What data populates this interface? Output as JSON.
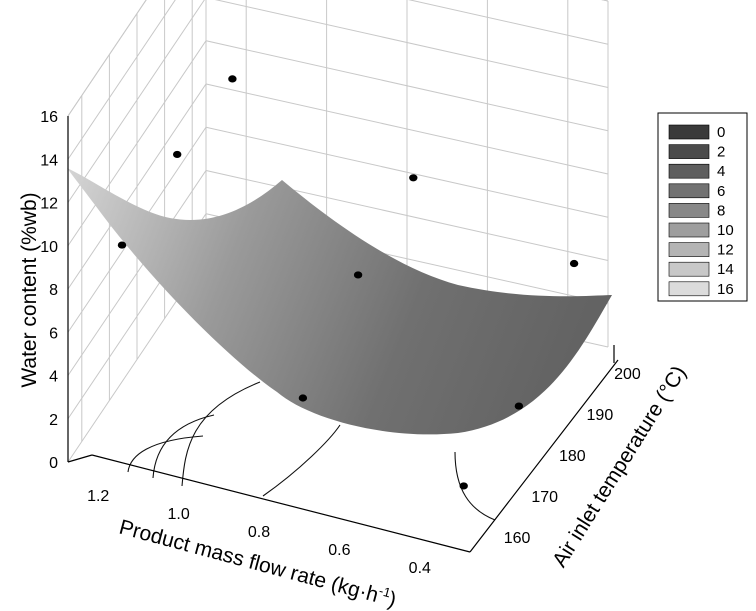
{
  "chart_data": {
    "type": "surface3d",
    "xlabel": "Product mass flow rate (kg·h",
    "xlabel_sup": "-1",
    "xlabel_close": ")",
    "ylabel": "Air inlet temperature (°C)",
    "zlabel": "Water content (%wb)",
    "x_ticks": [
      "1.2",
      "1.0",
      "0.8",
      "0.6",
      "0.4"
    ],
    "y_ticks": [
      "160",
      "170",
      "180",
      "190",
      "200"
    ],
    "z_ticks": [
      "0",
      "2",
      "4",
      "6",
      "8",
      "10",
      "12",
      "14",
      "16"
    ],
    "xlim": [
      0.3,
      1.3
    ],
    "ylim": [
      155,
      205
    ],
    "zlim": [
      0,
      16
    ],
    "grid": true,
    "legend_position": "right",
    "legend": {
      "labels": [
        "0",
        "2",
        "4",
        "6",
        "8",
        "10",
        "12",
        "14",
        "16"
      ],
      "colors": [
        "#3a3a3a",
        "#4b4b4b",
        "#5e5e5e",
        "#727272",
        "#888888",
        "#9e9e9e",
        "#b4b4b4",
        "#c8c8c8",
        "#dcdcdc"
      ]
    },
    "observed_points": [
      {
        "x": 1.2,
        "y": 160,
        "z": 9.5
      },
      {
        "x": 1.2,
        "y": 180,
        "z": 9.9
      },
      {
        "x": 1.2,
        "y": 200,
        "z": 9.6
      },
      {
        "x": 0.75,
        "y": 160,
        "z": 4.3
      },
      {
        "x": 0.75,
        "y": 180,
        "z": 6.2
      },
      {
        "x": 0.75,
        "y": 200,
        "z": 6.9
      },
      {
        "x": 0.35,
        "y": 160,
        "z": 1.9
      },
      {
        "x": 0.35,
        "y": 180,
        "z": 1.8
      },
      {
        "x": 0.35,
        "y": 200,
        "z": 4.6
      }
    ]
  },
  "colors": {
    "surface_light": "#d4d4d4",
    "surface_dark": "#6a6a6a",
    "grid": "#c8c8c8"
  }
}
